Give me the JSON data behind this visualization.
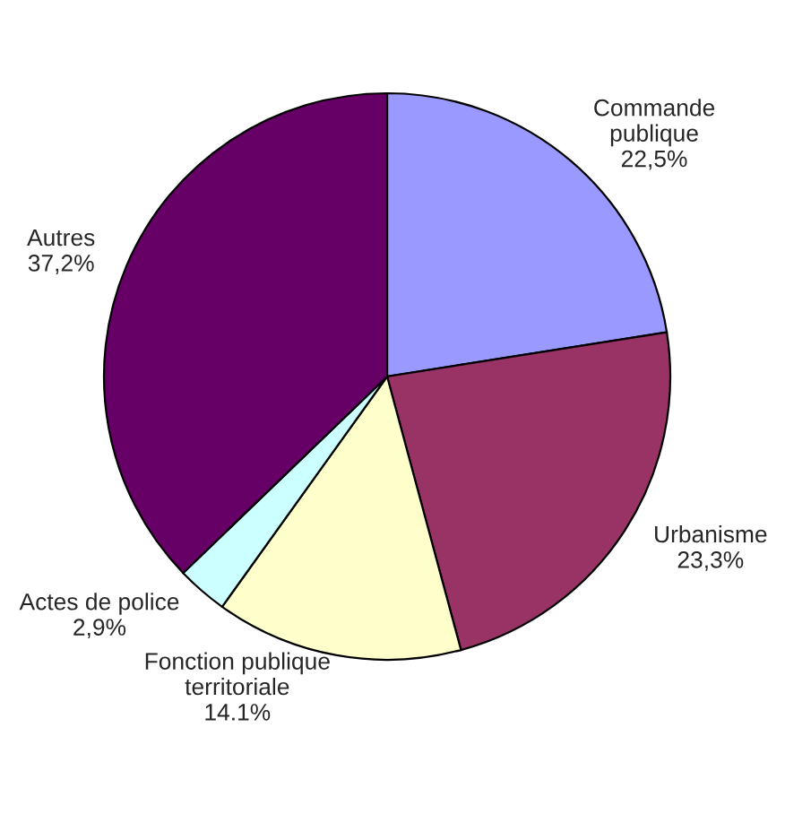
{
  "chart_data": {
    "type": "pie",
    "categories": [
      "Commande\npublique",
      "Urbanisme",
      "Fonction publique\nterritoriale",
      "Actes de police",
      "Autres"
    ],
    "values": [
      22.5,
      23.3,
      14.1,
      2.9,
      37.2
    ],
    "value_labels": [
      "22,5%",
      "23,3%",
      "14.1%",
      "2,9%",
      "37,2%"
    ],
    "colors": [
      "#9999ff",
      "#993366",
      "#ffffcc",
      "#ccffff",
      "#660066"
    ],
    "legend": false
  }
}
